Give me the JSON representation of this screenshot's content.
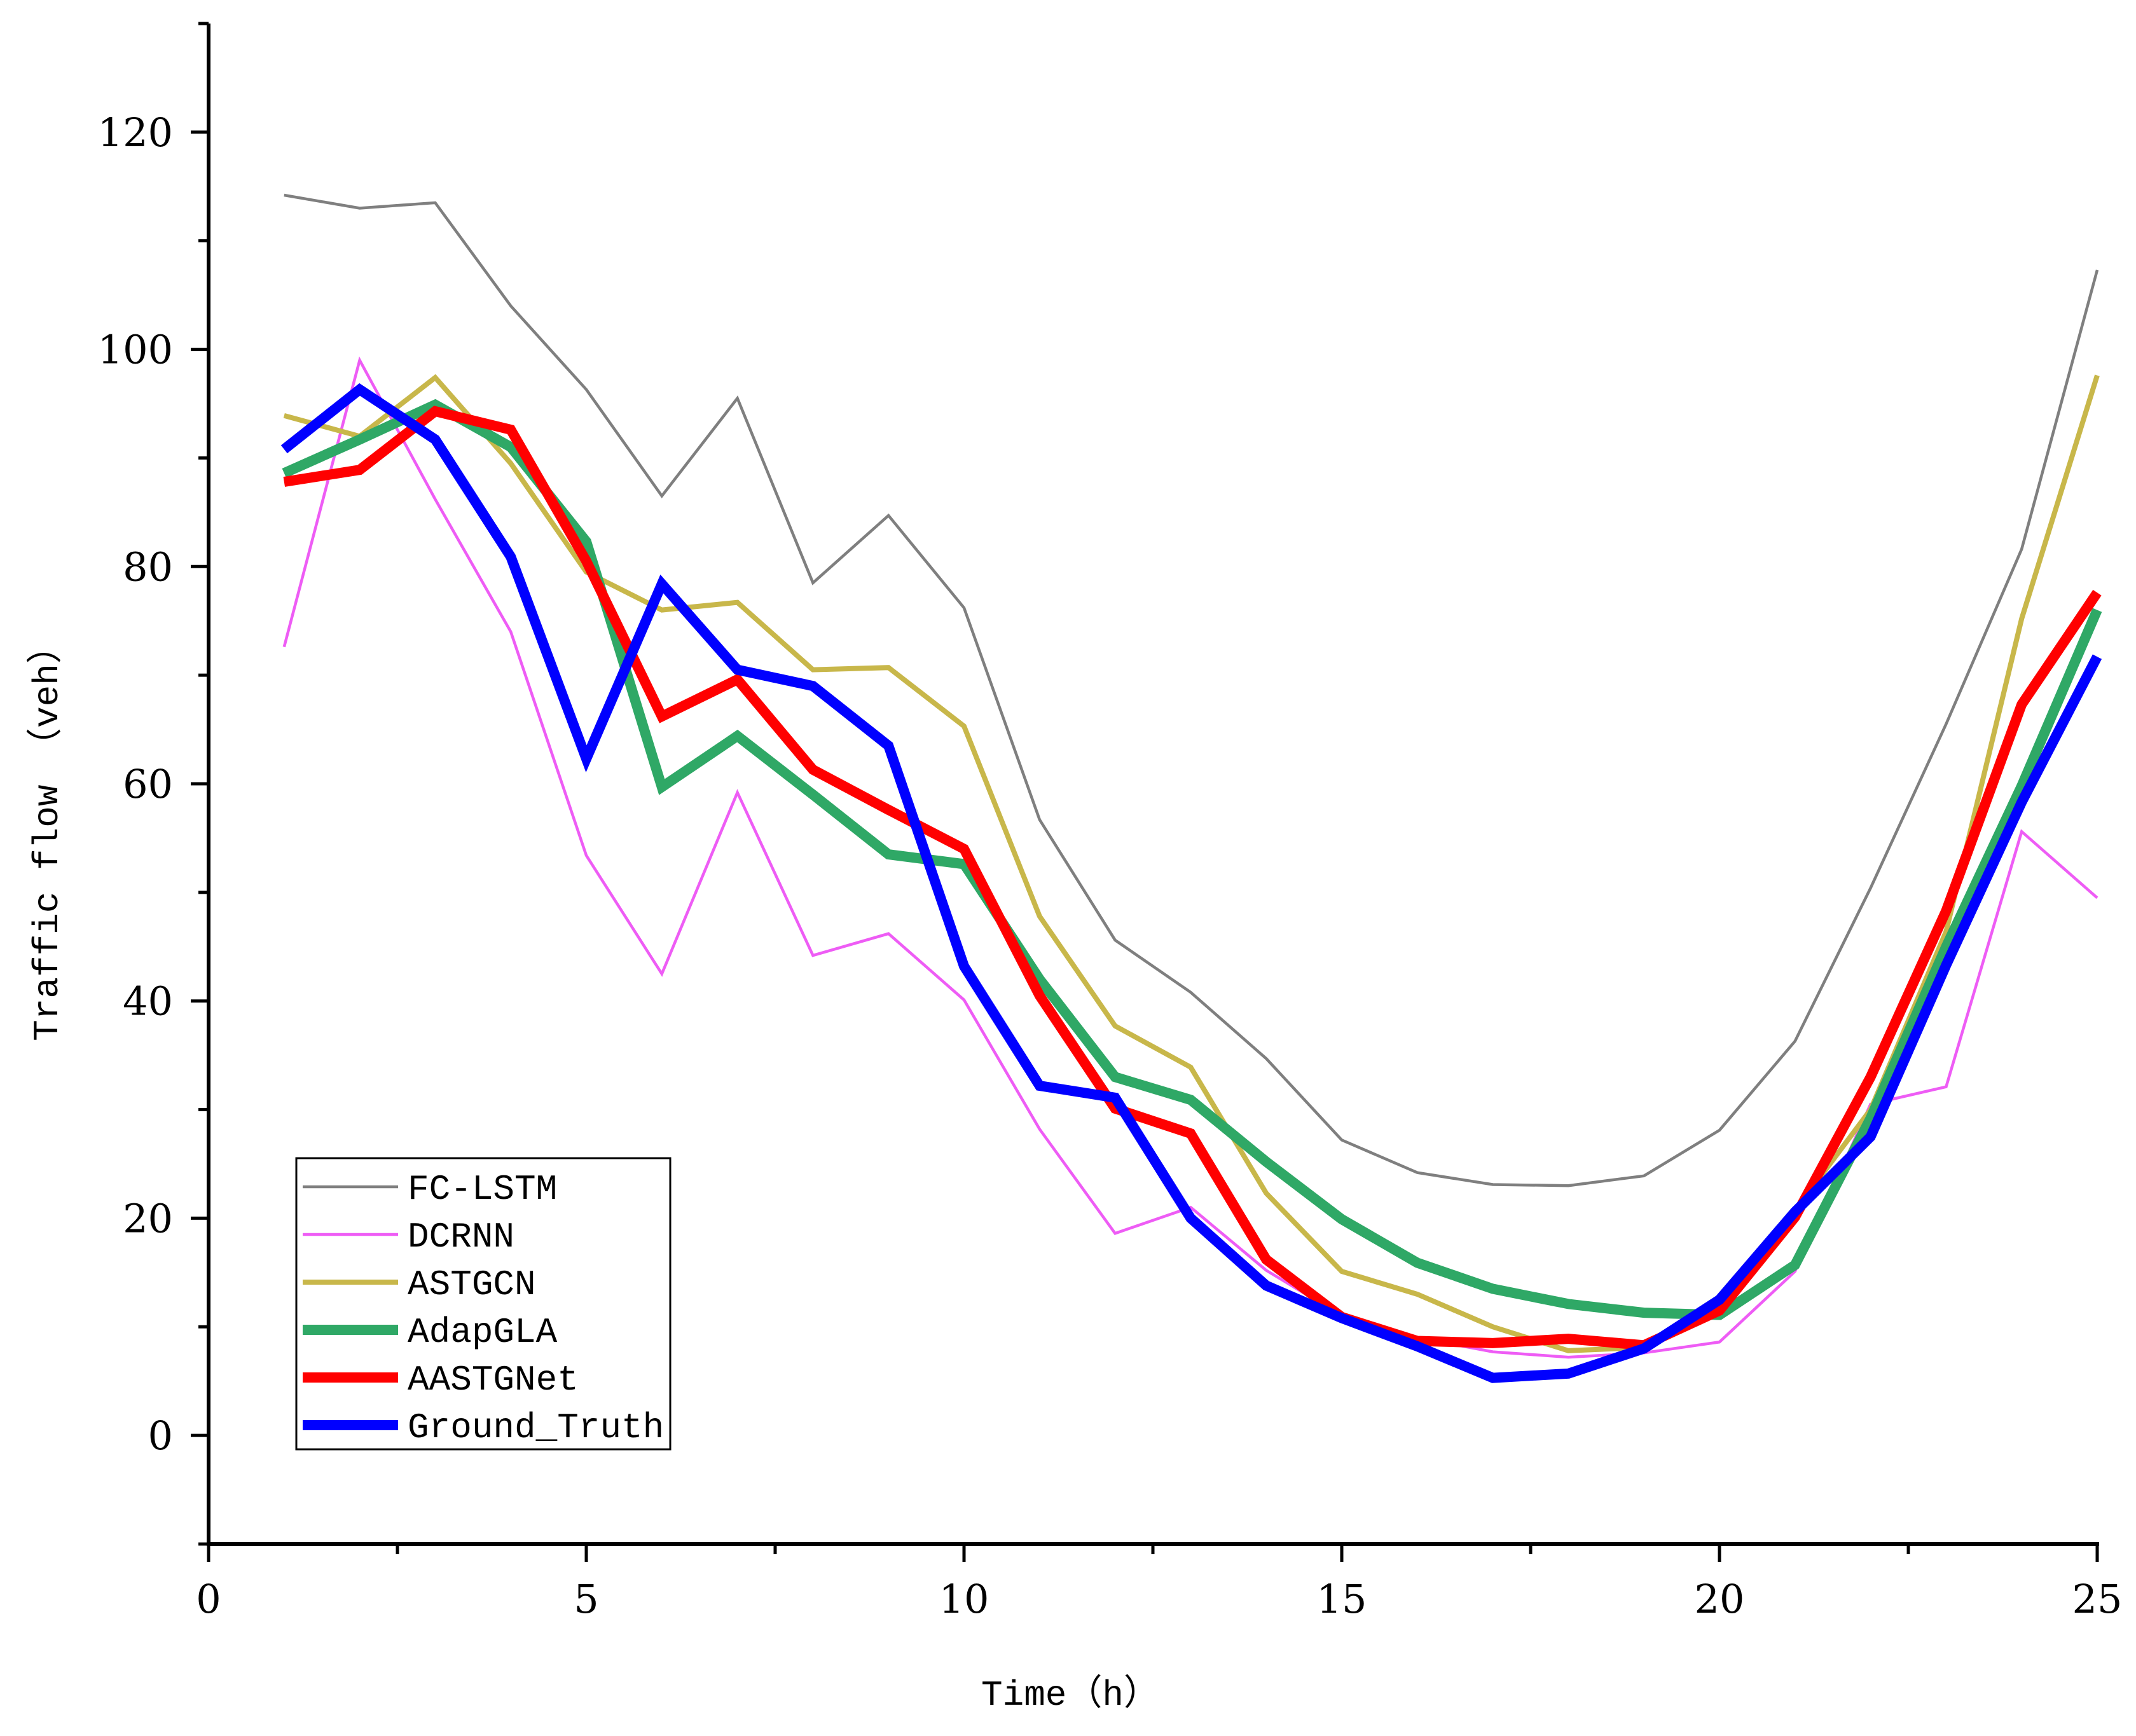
{
  "chart_data": {
    "type": "line",
    "title": "",
    "xlabel": "Time（h）",
    "ylabel": "Traffic flow （veh）",
    "xlim": [
      0,
      25
    ],
    "ylim": [
      -10,
      130
    ],
    "x_ticks": [
      0,
      5,
      10,
      15,
      20,
      25
    ],
    "x_tick_labels": [
      "0",
      "5",
      "10",
      "15",
      "20",
      "25"
    ],
    "x_minor_ticks": [
      2.5,
      7.5,
      12.5,
      17.5,
      22.5
    ],
    "y_ticks": [
      0,
      20,
      40,
      60,
      80,
      100,
      120
    ],
    "y_tick_labels": [
      "0",
      "20",
      "40",
      "60",
      "80",
      "100",
      "120"
    ],
    "y_minor_ticks": [
      -10,
      10,
      30,
      50,
      70,
      90,
      110,
      130
    ],
    "grid": false,
    "legend_position": "bottom-left",
    "x": [
      1,
      2,
      3,
      4,
      5,
      6,
      7,
      8,
      9,
      10,
      11,
      12,
      13,
      14,
      15,
      16,
      17,
      18,
      19,
      20,
      21,
      22,
      23,
      24,
      25
    ],
    "series": [
      {
        "name": "FC-LSTM",
        "color": "#7f7f7f",
        "weight": "thin",
        "values": [
          114.2,
          113,
          113.5,
          104,
          96.3,
          86.5,
          95.5,
          78.5,
          84.7,
          76.2,
          56.7,
          45.6,
          40.8,
          34.7,
          27.2,
          24.2,
          23.1,
          23.0,
          23.9,
          28.1,
          36.3,
          50.4,
          65.5,
          81.6,
          107.3
        ]
      },
      {
        "name": "DCRNN",
        "color": "#ee5cf5",
        "weight": "thin",
        "values": [
          72.6,
          99,
          86.2,
          74,
          53.4,
          42.5,
          59.2,
          44.2,
          46.2,
          40.1,
          28.2,
          18.6,
          21,
          15.2,
          11,
          9,
          7.7,
          7.2,
          7.6,
          8.6,
          15.1,
          30.5,
          32.1,
          55.6,
          49.5
        ]
      },
      {
        "name": "ASTGCN",
        "color": "#c8b74a",
        "weight": "medium",
        "values": [
          93.9,
          92,
          97.4,
          89.5,
          79.5,
          76,
          76.7,
          70.5,
          70.7,
          65.3,
          47.8,
          37.7,
          33.9,
          22.3,
          15.1,
          13,
          10,
          7.8,
          8.1,
          11.6,
          20.7,
          30,
          46.4,
          75.2,
          97.6
        ]
      },
      {
        "name": "AdapGLA",
        "color": "#2fa866",
        "weight": "thick",
        "values": [
          88.6,
          91.7,
          94.9,
          91,
          82.3,
          59.7,
          64.4,
          59,
          53.5,
          52.6,
          42,
          33,
          30.9,
          25.2,
          19.9,
          15.9,
          13.5,
          12.1,
          11.3,
          11.1,
          15.7,
          29.2,
          45,
          59.8,
          76
        ]
      },
      {
        "name": "AASTGNet",
        "color": "#ff0000",
        "weight": "thick",
        "values": [
          87.8,
          88.9,
          94.3,
          92.6,
          80.5,
          66.2,
          69.6,
          61.3,
          57.6,
          54,
          40.5,
          30.1,
          27.8,
          16.2,
          10.9,
          8.7,
          8.5,
          8.9,
          8.3,
          11.5,
          20.1,
          33,
          48.3,
          67.3,
          77.6
        ]
      },
      {
        "name": "Ground_Truth",
        "color": "#0000ff",
        "weight": "thick",
        "values": [
          90.8,
          96.3,
          91.7,
          80.9,
          62.3,
          78.4,
          70.5,
          69,
          63.5,
          43.2,
          32.2,
          31.1,
          20,
          13.8,
          10.8,
          8.2,
          5.3,
          5.7,
          8,
          12.5,
          20.6,
          27.5,
          43.3,
          58.3,
          71.7
        ]
      }
    ]
  }
}
